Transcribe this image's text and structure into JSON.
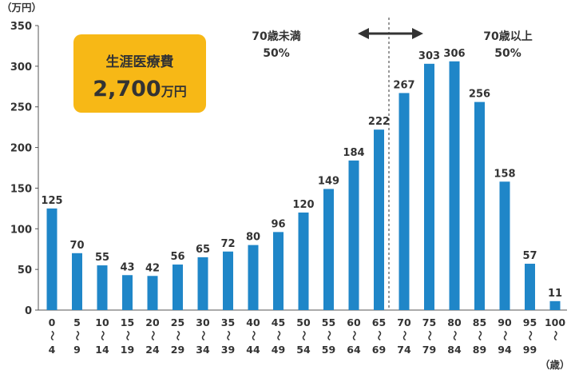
{
  "chart_data": {
    "type": "bar",
    "y_unit": "（万円）",
    "x_unit": "（歳）",
    "ylim": [
      0,
      350
    ],
    "yticks": [
      "0",
      "50",
      "100",
      "150",
      "200",
      "250",
      "300",
      "350"
    ],
    "categories": [
      [
        "0",
        "4"
      ],
      [
        "5",
        "9"
      ],
      [
        "10",
        "14"
      ],
      [
        "15",
        "19"
      ],
      [
        "20",
        "24"
      ],
      [
        "25",
        "29"
      ],
      [
        "30",
        "34"
      ],
      [
        "35",
        "39"
      ],
      [
        "40",
        "44"
      ],
      [
        "45",
        "49"
      ],
      [
        "50",
        "54"
      ],
      [
        "55",
        "59"
      ],
      [
        "60",
        "64"
      ],
      [
        "65",
        "69"
      ],
      [
        "70",
        "74"
      ],
      [
        "75",
        "79"
      ],
      [
        "80",
        "84"
      ],
      [
        "85",
        "89"
      ],
      [
        "90",
        "94"
      ],
      [
        "95",
        "99"
      ],
      [
        "100"
      ]
    ],
    "range_symbol": "〜",
    "values": [
      125,
      70,
      55,
      43,
      42,
      56,
      65,
      72,
      80,
      96,
      120,
      149,
      184,
      222,
      267,
      303,
      306,
      256,
      158,
      57,
      11
    ],
    "bar_color": "#1f86c8",
    "summary_box": {
      "title": "生涯医療費",
      "value": "2,700",
      "unit": "万円",
      "color": "#f7b816"
    },
    "annotations": {
      "under_70": {
        "line1": "70歳未満",
        "line2": "50%"
      },
      "over_70": {
        "line1": "70歳以上",
        "line2": "50%"
      }
    },
    "grid": false,
    "legend": "none"
  }
}
